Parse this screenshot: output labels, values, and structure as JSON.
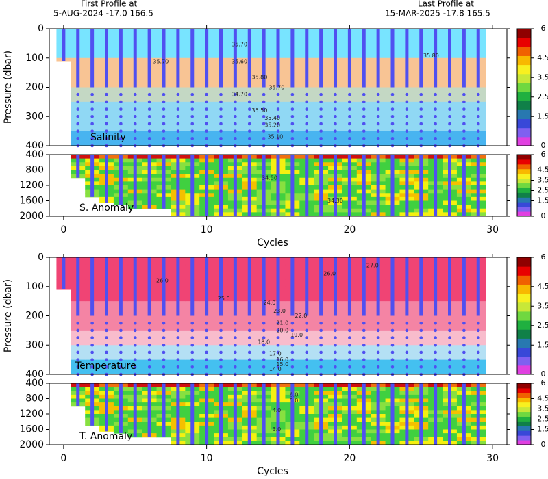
{
  "header": {
    "first_label": "First Profile at",
    "first_value": "5-AUG-2024   -17.0  166.5",
    "last_label": "Last Profile at",
    "last_value": "15-MAR-2025   -17.8  165.5"
  },
  "profiles": {
    "cycles": [
      0,
      1,
      2,
      3,
      4,
      5,
      6,
      7,
      8,
      9,
      10,
      11,
      12,
      13,
      14,
      15,
      16,
      17,
      18,
      19,
      20,
      21,
      22,
      23,
      24,
      25,
      26,
      27,
      28,
      29
    ],
    "max_pressure": [
      110,
      1000,
      1500,
      1650,
      1700,
      1800,
      1800,
      1800,
      2000,
      2000,
      2000,
      2000,
      2000,
      2000,
      2000,
      2000,
      2000,
      2000,
      2000,
      2000,
      2000,
      2000,
      2000,
      2000,
      2000,
      2000,
      2000,
      2000,
      2000,
      2000
    ]
  },
  "colorbar": {
    "lim": [
      0,
      6
    ],
    "ticks": [
      0,
      1.5,
      2.5,
      3.5,
      4.5,
      6
    ],
    "colors": [
      "#e040e0",
      "#8060f0",
      "#3848d8",
      "#2878b0",
      "#108048",
      "#20b040",
      "#70d840",
      "#c8e838",
      "#f8f020",
      "#f8b800",
      "#f06000",
      "#e80000",
      "#900000"
    ]
  },
  "chart_data": [
    {
      "type": "section",
      "label": "Salinity",
      "field": "salinity",
      "ylabel": "Pressure (dbar)",
      "xlim": [
        -1,
        31
      ],
      "xticks": [
        0,
        10,
        20,
        30
      ],
      "ylim": [
        0,
        400
      ],
      "yticks": [
        0,
        100,
        200,
        300,
        400
      ],
      "contour_labels": [
        {
          "x": 12.3,
          "y": 54,
          "label": "35.70"
        },
        {
          "x": 6.8,
          "y": 112,
          "label": "35.70"
        },
        {
          "x": 12.3,
          "y": 112,
          "label": "35.60"
        },
        {
          "x": 13.7,
          "y": 166,
          "label": "35.80"
        },
        {
          "x": 14.9,
          "y": 201,
          "label": "35.70"
        },
        {
          "x": 25.7,
          "y": 92,
          "label": "35.80"
        },
        {
          "x": 12.3,
          "y": 225,
          "label": "34.70"
        },
        {
          "x": 13.7,
          "y": 280,
          "label": "35.50"
        },
        {
          "x": 14.6,
          "y": 305,
          "label": "35.40"
        },
        {
          "x": 14.6,
          "y": 330,
          "label": "35.20"
        },
        {
          "x": 14.8,
          "y": 370,
          "label": "35.10"
        }
      ]
    },
    {
      "type": "section",
      "label": "S. Anomaly",
      "field": "anomaly",
      "xlabel": "Cycles",
      "xlim": [
        -1,
        31
      ],
      "xticks": [
        0,
        10,
        20,
        30
      ],
      "ylim": [
        400,
        2000
      ],
      "yticks": [
        400,
        800,
        1200,
        1600,
        2000
      ],
      "contour_labels": [
        {
          "x": 14.4,
          "y": 1000,
          "label": "34.50"
        },
        {
          "x": 19,
          "y": 1600,
          "label": "34.30"
        }
      ]
    },
    {
      "type": "section",
      "label": "Temperature",
      "field": "temperature",
      "ylabel": "Pressure (dbar)",
      "xlim": [
        -1,
        31
      ],
      "xticks": [
        0,
        10,
        20,
        30
      ],
      "ylim": [
        0,
        400
      ],
      "yticks": [
        0,
        100,
        200,
        300,
        400
      ],
      "contour_labels": [
        {
          "x": 6.9,
          "y": 80,
          "label": "26.0"
        },
        {
          "x": 11.2,
          "y": 142,
          "label": "25.0"
        },
        {
          "x": 14.4,
          "y": 156,
          "label": "24.0"
        },
        {
          "x": 21.6,
          "y": 28,
          "label": "27.0"
        },
        {
          "x": 18.6,
          "y": 56,
          "label": "26.0"
        },
        {
          "x": 15.1,
          "y": 184,
          "label": "23.0"
        },
        {
          "x": 16.6,
          "y": 200,
          "label": "22.0"
        },
        {
          "x": 15.3,
          "y": 225,
          "label": "21.0"
        },
        {
          "x": 15.3,
          "y": 250,
          "label": "20.0"
        },
        {
          "x": 16.3,
          "y": 265,
          "label": "19.0"
        },
        {
          "x": 14,
          "y": 290,
          "label": "18.0"
        },
        {
          "x": 14.8,
          "y": 330,
          "label": "17.0"
        },
        {
          "x": 15.3,
          "y": 350,
          "label": "16.0"
        },
        {
          "x": 15.3,
          "y": 366,
          "label": "15.0"
        },
        {
          "x": 14.8,
          "y": 382,
          "label": "14.0"
        }
      ]
    },
    {
      "type": "section",
      "label": "T. Anomaly",
      "field": "anomaly",
      "xlabel": "Cycles",
      "xlim": [
        -1,
        31
      ],
      "xticks": [
        0,
        10,
        20,
        30
      ],
      "ylim": [
        400,
        2000
      ],
      "yticks": [
        400,
        800,
        1200,
        1600,
        2000
      ],
      "contour_labels": [
        {
          "x": 16.1,
          "y": 700,
          "label": "6.0"
        },
        {
          "x": 16.1,
          "y": 850,
          "label": "5.0"
        },
        {
          "x": 14.9,
          "y": 1100,
          "label": "4.0"
        },
        {
          "x": 14.9,
          "y": 1600,
          "label": "3.0"
        }
      ]
    }
  ]
}
